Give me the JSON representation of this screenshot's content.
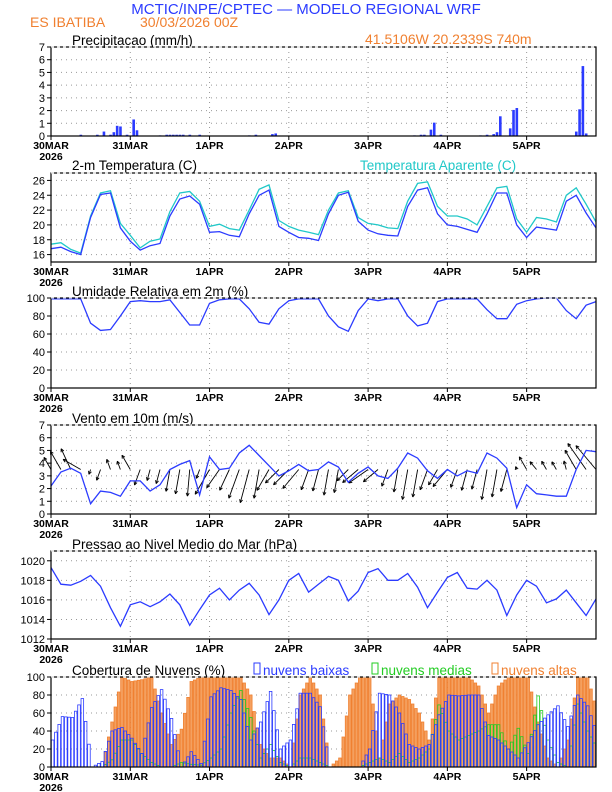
{
  "header": {
    "title": "MCTIC/INPE/CPTEC — MODELO REGIONAL WRF",
    "station": "ES IBATIBA",
    "run": "30/03/2026 00Z",
    "location": "41.5106W 20.2339S 740m"
  },
  "colors": {
    "blue": "#2b3bff",
    "cyan": "#20c8c8",
    "orange": "#f08030",
    "orange_fill": "#f4a060",
    "green": "#22cc22",
    "grid": "#999999"
  },
  "x_axis": {
    "unit": "hours since 30MAR2026 00Z",
    "range": [
      0,
      165
    ],
    "day_ticks": [
      0,
      24,
      48,
      72,
      96,
      120,
      144
    ],
    "day_labels": [
      "30MAR",
      "31MAR",
      "1APR",
      "2APR",
      "3APR",
      "4APR",
      "5APR"
    ],
    "year_label": "2026"
  },
  "chart_data": [
    {
      "id": "precip",
      "type": "bar",
      "title": "Precipitacao (mm/h)",
      "ylim": [
        0,
        7
      ],
      "yticks": [
        0,
        1,
        2,
        3,
        4,
        5,
        6,
        7
      ],
      "points": [
        [
          9,
          0.1
        ],
        [
          14,
          0.1
        ],
        [
          16,
          0.35
        ],
        [
          18,
          0.1
        ],
        [
          19,
          0.3
        ],
        [
          20,
          0.8
        ],
        [
          21,
          0.75
        ],
        [
          23,
          0.1
        ],
        [
          25,
          1.3
        ],
        [
          26,
          0.45
        ],
        [
          33,
          0.05
        ],
        [
          35,
          0.1
        ],
        [
          36,
          0.1
        ],
        [
          37,
          0.1
        ],
        [
          38,
          0.1
        ],
        [
          39,
          0.1
        ],
        [
          40,
          0.1
        ],
        [
          42,
          0.1
        ],
        [
          45,
          0.1
        ],
        [
          60,
          0.05
        ],
        [
          62,
          0.1
        ],
        [
          67,
          0.15
        ],
        [
          68,
          0.2
        ],
        [
          110,
          0.05
        ],
        [
          112,
          0.1
        ],
        [
          113,
          0.1
        ],
        [
          115,
          0.5
        ],
        [
          116,
          1.05
        ],
        [
          118,
          0.1
        ],
        [
          130,
          0.05
        ],
        [
          132,
          0.1
        ],
        [
          134,
          0.15
        ],
        [
          135,
          0.3
        ],
        [
          136,
          1.55
        ],
        [
          139,
          0.6
        ],
        [
          140,
          2.05
        ],
        [
          141,
          2.2
        ],
        [
          159,
          0.35
        ],
        [
          160,
          2.1
        ],
        [
          161,
          5.5
        ],
        [
          162,
          0.2
        ]
      ]
    },
    {
      "id": "temp",
      "type": "line",
      "title": "2-m Temperatura (C)",
      "legend": "Temperatura Aparente (C)",
      "ylim": [
        15,
        27
      ],
      "yticks": [
        16,
        18,
        20,
        22,
        24,
        26
      ],
      "step_hours": 3,
      "series": [
        {
          "name": "2-m Temperatura (C)",
          "values": [
            16.8,
            17.0,
            16.4,
            16.0,
            21.0,
            24.1,
            24.3,
            19.6,
            17.8,
            16.6,
            17.2,
            17.5,
            21.2,
            23.5,
            23.9,
            22.8,
            19.0,
            19.1,
            18.6,
            18.4,
            21.5,
            24.0,
            24.7,
            19.8,
            19.0,
            18.3,
            18.2,
            17.9,
            21.5,
            24.0,
            24.4,
            20.5,
            19.3,
            18.8,
            18.6,
            18.5,
            22.5,
            24.7,
            25.0,
            21.5,
            20.0,
            19.8,
            19.4,
            19.0,
            21.5,
            24.3,
            24.3,
            20.0,
            18.3,
            19.7,
            19.5,
            19.3,
            23.2,
            24.0,
            21.6,
            19.6
          ]
        },
        {
          "name": "Temperatura Aparente (C)",
          "values": [
            17.4,
            17.6,
            16.7,
            16.2,
            21.2,
            24.3,
            24.6,
            20.2,
            18.6,
            16.9,
            17.8,
            18.1,
            21.8,
            24.3,
            24.5,
            23.2,
            19.8,
            20.1,
            19.5,
            19.3,
            22.0,
            24.8,
            25.4,
            20.6,
            19.8,
            19.3,
            19.0,
            18.7,
            22.0,
            24.3,
            24.6,
            21.0,
            20.2,
            20.0,
            19.6,
            19.5,
            23.2,
            25.6,
            25.8,
            22.5,
            21.2,
            21.2,
            20.8,
            20.0,
            22.5,
            25.0,
            25.2,
            20.8,
            19.0,
            21.0,
            20.8,
            20.4,
            24.0,
            25.0,
            22.8,
            20.4
          ]
        }
      ]
    },
    {
      "id": "rh",
      "type": "line",
      "title": "Umidade Relativa em 2m (%)",
      "ylim": [
        0,
        100
      ],
      "yticks": [
        0,
        20,
        40,
        60,
        80,
        100
      ],
      "step_hours": 3,
      "values": [
        99,
        99,
        99,
        99,
        72,
        64,
        65,
        80,
        96,
        97,
        96,
        96,
        98,
        84,
        70,
        70,
        94,
        98,
        99,
        99,
        88,
        73,
        71,
        88,
        97,
        99,
        99,
        99,
        80,
        68,
        63,
        86,
        99,
        97,
        99,
        99,
        80,
        69,
        72,
        96,
        99,
        99,
        99,
        99,
        87,
        77,
        77,
        93,
        97,
        99,
        100,
        100,
        86,
        77,
        92,
        96
      ]
    },
    {
      "id": "wind",
      "type": "line",
      "title": "Vento em 10m (m/s)",
      "ylim": [
        0,
        7
      ],
      "yticks": [
        0,
        1,
        2,
        3,
        4,
        5,
        6,
        7
      ],
      "step_hours": 3,
      "arrow_baseline": 3.5,
      "speed": [
        2.2,
        3.3,
        3.6,
        3.2,
        0.8,
        1.8,
        1.7,
        1.4,
        2.6,
        2.6,
        1.8,
        2.3,
        3.5,
        3.9,
        4.2,
        1.5,
        4.5,
        3.5,
        3.6,
        4.8,
        5.4,
        4.6,
        3.8,
        3.0,
        3.4,
        3.9,
        3.4,
        3.5,
        4.1,
        3.7,
        2.5,
        3.2,
        3.7,
        3.0,
        2.8,
        3.6,
        4.8,
        4.4,
        3.4,
        2.8,
        3.5,
        3.0,
        3.4,
        3.2,
        4.8,
        4.4,
        3.6,
        0.5,
        2.3,
        1.6,
        1.5,
        1.4,
        1.4,
        3.5,
        5.0,
        4.9
      ],
      "direction_toward_deg": [
        330,
        330,
        335,
        300,
        200,
        200,
        340,
        340,
        330,
        200,
        195,
        195,
        190,
        190,
        185,
        200,
        210,
        215,
        205,
        200,
        195,
        190,
        210,
        225,
        225,
        220,
        200,
        195,
        190,
        190,
        225,
        230,
        235,
        230,
        200,
        190,
        190,
        190,
        200,
        210,
        220,
        200,
        195,
        195,
        190,
        190,
        195,
        340,
        330,
        320,
        330,
        330,
        345,
        330,
        325,
        320
      ]
    },
    {
      "id": "pressure",
      "type": "line",
      "title": "Pressao ao Nivel Medio do Mar (hPa)",
      "ylim": [
        1012,
        1021
      ],
      "yticks": [
        1012,
        1014,
        1016,
        1018,
        1020
      ],
      "step_hours": 3,
      "values": [
        1019.3,
        1017.6,
        1017.5,
        1017.9,
        1018.5,
        1017.4,
        1015.2,
        1013.3,
        1015.5,
        1015.8,
        1015.3,
        1015.8,
        1016.6,
        1015.5,
        1013.4,
        1015.0,
        1016.5,
        1017.2,
        1016.0,
        1017.0,
        1017.7,
        1016.5,
        1014.5,
        1016.0,
        1018.0,
        1018.7,
        1016.8,
        1017.6,
        1018.4,
        1018.0,
        1015.9,
        1016.9,
        1018.8,
        1019.2,
        1018.0,
        1018.0,
        1018.7,
        1017.3,
        1015.2,
        1016.8,
        1018.3,
        1018.8,
        1017.2,
        1017.1,
        1018.0,
        1017.0,
        1014.4,
        1016.5,
        1018.0,
        1017.4,
        1015.7,
        1016.1,
        1017.0,
        1015.7,
        1014.4,
        1016.1
      ]
    },
    {
      "id": "clouds",
      "type": "bar",
      "title": "Cobertura de Nuvens (%)",
      "ylim": [
        0,
        100
      ],
      "yticks": [
        0,
        20,
        40,
        60,
        80,
        100
      ],
      "step_hours": 3,
      "series": [
        {
          "name": "nuvens altas",
          "values": [
            0,
            0,
            0,
            0,
            0,
            0,
            50,
            100,
            95,
            97,
            100,
            60,
            25,
            42,
            95,
            100,
            100,
            100,
            100,
            100,
            80,
            25,
            10,
            10,
            0,
            80,
            100,
            80,
            0,
            10,
            80,
            100,
            100,
            10,
            70,
            80,
            75,
            60,
            30,
            100,
            100,
            100,
            100,
            90,
            60,
            90,
            100,
            100,
            100,
            50,
            10,
            0,
            30,
            100,
            100,
            60
          ]
        },
        {
          "name": "nuvens medias",
          "values": [
            0,
            0,
            0,
            0,
            0,
            0,
            8,
            30,
            30,
            15,
            5,
            0,
            0,
            5,
            3,
            2,
            10,
            20,
            60,
            85,
            55,
            10,
            25,
            5,
            0,
            10,
            10,
            5,
            0,
            0,
            0,
            0,
            5,
            10,
            5,
            15,
            5,
            10,
            20,
            69,
            40,
            30,
            35,
            40,
            47,
            47,
            20,
            43,
            15,
            79,
            30,
            5,
            0,
            70,
            40,
            20
          ]
        },
        {
          "name": "nuvens baixas",
          "values": [
            30,
            56,
            55,
            76,
            0,
            6,
            40,
            44,
            32,
            15,
            66,
            86,
            54,
            0,
            17,
            4,
            78,
            88,
            85,
            75,
            30,
            50,
            84,
            20,
            30,
            82,
            82,
            67,
            0,
            0,
            0,
            0,
            20,
            82,
            80,
            60,
            25,
            20,
            25,
            58,
            80,
            79,
            80,
            80,
            35,
            30,
            20,
            10,
            27,
            47,
            58,
            68,
            45,
            80,
            68,
            35
          ]
        }
      ]
    }
  ]
}
